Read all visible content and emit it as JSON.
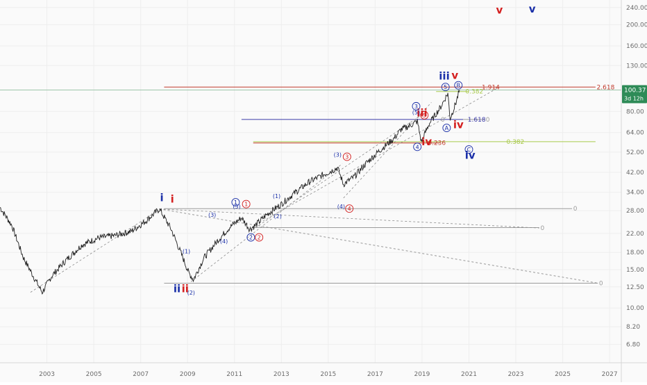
{
  "chart_data": {
    "type": "line",
    "title": "",
    "xlabel": "",
    "ylabel": "",
    "y_scale": "log",
    "xlim": [
      2001.0,
      2027.5
    ],
    "ylim": [
      5.6,
      260
    ],
    "grid": true,
    "x_ticks": [
      "2003",
      "2005",
      "2007",
      "2009",
      "2011",
      "2013",
      "2015",
      "2017",
      "2019",
      "2021",
      "2023",
      "2025",
      "2027"
    ],
    "y_ticks": [
      "240.00",
      "200.00",
      "160.00",
      "130.00",
      "100.37",
      "80.00",
      "64.00",
      "52.00",
      "42.00",
      "34.00",
      "28.00",
      "22.00",
      "18.00",
      "15.00",
      "12.50",
      "10.00",
      "8.20",
      "6.80"
    ],
    "last_price": "100.37",
    "countdown": "3d 12h",
    "series": [
      {
        "color": "#1e1e1e",
        "x": [
          2001.0,
          2001.5,
          2002.0,
          2002.5,
          2002.8,
          2003.2,
          2003.8,
          2004.5,
          2005.2,
          2005.9,
          2006.6,
          2007.2,
          2007.8,
          2008.3,
          2008.8,
          2009.05,
          2009.25,
          2009.7,
          2010.3,
          2010.8,
          2011.3,
          2011.65,
          2011.9,
          2012.4,
          2013.0,
          2013.6,
          2014.2,
          2014.8,
          2015.4,
          2015.65,
          2016.1,
          2016.6,
          2017.2,
          2017.8,
          2018.1,
          2018.5,
          2018.8,
          2018.97,
          2019.3,
          2019.8,
          2020.1,
          2020.2,
          2020.45,
          2020.6
        ],
        "y": [
          29,
          24,
          17,
          13.5,
          11.8,
          14,
          16.5,
          19.5,
          21,
          21.5,
          22.5,
          25,
          28.5,
          23,
          17,
          14.5,
          13.5,
          17,
          20.5,
          23.5,
          26,
          23,
          24,
          27,
          30,
          34,
          38,
          41,
          44,
          37,
          40,
          46,
          53,
          60,
          66,
          69,
          72,
          58,
          70,
          84,
          97,
          74,
          88,
          100.37
        ]
      }
    ],
    "wave_labels": [
      {
        "text": "i",
        "x": 2007.9,
        "y": 31,
        "color": "#1a2fa8"
      },
      {
        "text": "i",
        "x": 2008.35,
        "y": 30.5,
        "color": "#d42020"
      },
      {
        "text": "ii",
        "x": 2008.55,
        "y": 11.8,
        "color": "#1a2fa8"
      },
      {
        "text": "ii",
        "x": 2008.9,
        "y": 11.8,
        "color": "#d42020"
      },
      {
        "text": "iii",
        "x": 2019.95,
        "y": 112,
        "color": "#1a2fa8"
      },
      {
        "text": "v",
        "x": 2020.4,
        "y": 113,
        "color": "#d42020"
      },
      {
        "text": "iii",
        "x": 2019.0,
        "y": 76,
        "color": "#d42020"
      },
      {
        "text": "iv",
        "x": 2019.2,
        "y": 56,
        "color": "#d42020"
      },
      {
        "text": "iv",
        "x": 2020.55,
        "y": 67,
        "color": "#d42020"
      },
      {
        "text": "iv",
        "x": 2021.05,
        "y": 48.5,
        "color": "#1a2fa8"
      },
      {
        "text": "v",
        "x": 2022.3,
        "y": 225,
        "color": "#d42020"
      },
      {
        "text": "v",
        "x": 2023.7,
        "y": 228,
        "color": "#1a2fa8"
      }
    ],
    "circled_labels": [
      {
        "text": "1",
        "x": 2011.05,
        "y": 30.6,
        "color": "#1a2fa8"
      },
      {
        "text": "1",
        "x": 2011.5,
        "y": 30.0,
        "color": "#d42020"
      },
      {
        "text": "2",
        "x": 2011.7,
        "y": 21.1,
        "color": "#1a2fa8"
      },
      {
        "text": "2",
        "x": 2012.05,
        "y": 21.1,
        "color": "#d42020"
      },
      {
        "text": "3",
        "x": 2015.8,
        "y": 49.5,
        "color": "#d42020"
      },
      {
        "text": "4",
        "x": 2015.9,
        "y": 28.6,
        "color": "#d42020"
      },
      {
        "text": "3",
        "x": 2018.75,
        "y": 84.5,
        "color": "#1a2fa8"
      },
      {
        "text": "5",
        "x": 2019.1,
        "y": 76.8,
        "color": "#d42020"
      },
      {
        "text": "4",
        "x": 2018.8,
        "y": 55.0,
        "color": "#1a2fa8"
      },
      {
        "text": "5",
        "x": 2020.0,
        "y": 103.6,
        "color": "#1a2fa8"
      },
      {
        "text": "B",
        "x": 2020.55,
        "y": 105.5,
        "color": "#1a2fa8"
      },
      {
        "text": "A",
        "x": 2020.05,
        "y": 67.2,
        "color": "#1a2fa8"
      },
      {
        "text": "C",
        "x": 2021.0,
        "y": 53.5,
        "color": "#1a2fa8"
      }
    ],
    "small_labels": [
      {
        "text": "(1)",
        "x": 2008.95,
        "y": 17.8
      },
      {
        "text": "(2)",
        "x": 2009.15,
        "y": 11.5
      },
      {
        "text": "(3)",
        "x": 2010.05,
        "y": 26.2
      },
      {
        "text": "(4)",
        "x": 2010.55,
        "y": 19.8
      },
      {
        "text": "(5)",
        "x": 2011.1,
        "y": 28.6
      },
      {
        "text": "(1)",
        "x": 2012.8,
        "y": 32.0
      },
      {
        "text": "(2)",
        "x": 2012.85,
        "y": 25.8
      },
      {
        "text": "(3)",
        "x": 2015.4,
        "y": 49.5
      },
      {
        "text": "(4)",
        "x": 2015.55,
        "y": 28.6
      },
      {
        "text": "(5)",
        "x": 2018.75,
        "y": 77.5
      }
    ],
    "hlines": [
      {
        "y": 103.5,
        "x1": 2008.0,
        "x2": 2021.25,
        "color": "#c0392b"
      },
      {
        "y": 103.5,
        "x1": 2021.25,
        "x2": 2026.4,
        "color": "#c0392b"
      },
      {
        "y": 98.7,
        "x1": 2019.6,
        "x2": 2021.0,
        "color": "#a8c94a"
      },
      {
        "y": 73.5,
        "x1": 2011.3,
        "x2": 2020.75,
        "color": "#3b3ba8"
      },
      {
        "y": 73.5,
        "x1": 2020.75,
        "x2": 2021.7,
        "color": "#9b9b9b"
      },
      {
        "y": 57.3,
        "x1": 2011.8,
        "x2": 2019.75,
        "color": "#c0392b"
      },
      {
        "y": 58.1,
        "x1": 2011.8,
        "x2": 2026.4,
        "color": "#a8c94a"
      },
      {
        "y": 28.6,
        "x1": 2008.0,
        "x2": 2025.4,
        "color": "#9b9b9b"
      },
      {
        "y": 23.4,
        "x1": 2011.8,
        "x2": 2024.0,
        "color": "#9b9b9b"
      },
      {
        "y": 13.0,
        "x1": 2008.0,
        "x2": 2026.5,
        "color": "#9b9b9b"
      }
    ],
    "dashlines": [
      {
        "x1": 2002.3,
        "y1": 11.8,
        "x2": 2007.8,
        "y2": 28.3
      },
      {
        "x1": 2007.8,
        "y1": 28.5,
        "x2": 2026.5,
        "y2": 13.0
      },
      {
        "x1": 2007.8,
        "y1": 28.5,
        "x2": 2024.0,
        "y2": 23.3
      },
      {
        "x1": 2009.15,
        "y1": 13.2,
        "x2": 2015.6,
        "y2": 46.0
      },
      {
        "x1": 2011.75,
        "y1": 22.8,
        "x2": 2019.2,
        "y2": 80.0
      },
      {
        "x1": 2011.75,
        "y1": 23.5,
        "x2": 2022.3,
        "y2": 103.5
      },
      {
        "x1": 2015.65,
        "y1": 32.0,
        "x2": 2019.4,
        "y2": 88.0
      }
    ],
    "fib_labels": [
      {
        "text": "2.618",
        "x": 2026.45,
        "y": 103.5,
        "color": "#c0392b"
      },
      {
        "text": "1.914",
        "x": 2021.55,
        "y": 103.5,
        "color": "#c0392b"
      },
      {
        "text": "0.382",
        "x": 2020.85,
        "y": 98.7,
        "color": "#a8c94a"
      },
      {
        "text": "0",
        "x": 2019.8,
        "y": 73.5,
        "color": "#9b9b9b"
      },
      {
        "text": "1.618",
        "x": 2020.95,
        "y": 73.5,
        "color": "#3b3ba8"
      },
      {
        "text": "0",
        "x": 2021.72,
        "y": 73.5,
        "color": "#9b9b9b"
      },
      {
        "text": "0.382",
        "x": 2022.6,
        "y": 58.1,
        "color": "#a8c94a"
      },
      {
        "text": "0.236",
        "x": 2019.25,
        "y": 57.3,
        "color": "#c0392b"
      },
      {
        "text": "0",
        "x": 2025.45,
        "y": 28.6,
        "color": "#9b9b9b"
      },
      {
        "text": "0",
        "x": 2024.05,
        "y": 23.3,
        "color": "#9b9b9b"
      },
      {
        "text": "0",
        "x": 2026.55,
        "y": 13.0,
        "color": "#9b9b9b"
      }
    ]
  }
}
